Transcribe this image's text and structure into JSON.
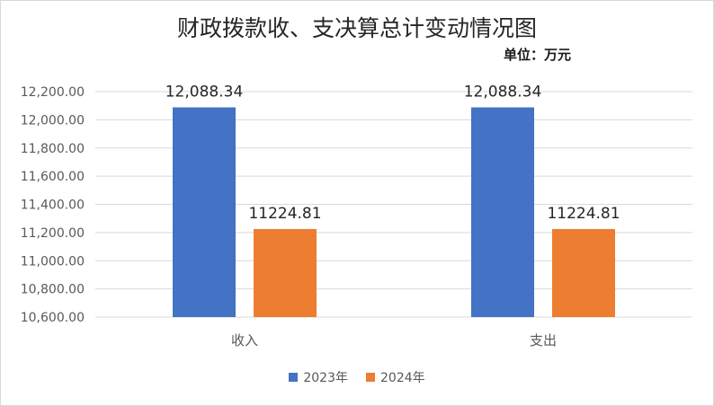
{
  "chart_data": {
    "type": "bar",
    "title": "财政拨款收、支决算总计变动情况图",
    "unit": "单位：万元",
    "categories": [
      "收入",
      "支出"
    ],
    "series": [
      {
        "name": "2023年",
        "color": "#4472c4",
        "values": [
          12088.34,
          12088.34
        ],
        "labels": [
          "12,088.34",
          "12,088.34"
        ]
      },
      {
        "name": "2024年",
        "color": "#ed7d31",
        "values": [
          11224.81,
          11224.81
        ],
        "labels": [
          "11224.81",
          "11224.81"
        ]
      }
    ],
    "ylim": [
      10600,
      12200
    ],
    "yticks": [
      "10,600.00",
      "10,800.00",
      "11,000.00",
      "11,200.00",
      "11,400.00",
      "11,600.00",
      "11,800.00",
      "12,000.00",
      "12,200.00"
    ],
    "grid": true,
    "legend_position": "bottom"
  }
}
